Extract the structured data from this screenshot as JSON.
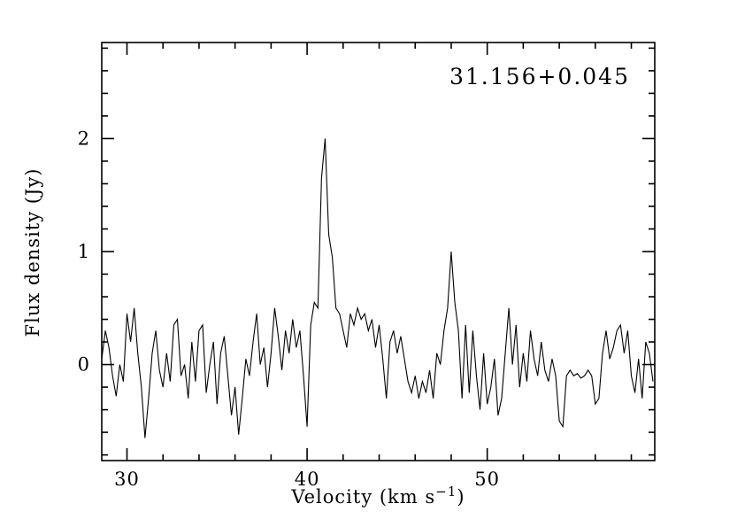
{
  "figure": {
    "background_color": "#ffffff",
    "line_color": "#000000"
  },
  "chart_data": {
    "type": "line",
    "title": "31.156+0.045",
    "xlabel": "Velocity (km s⁻¹)",
    "xlabel_parts": {
      "prefix": "Velocity (km s",
      "sup": "−1",
      "suffix": ")"
    },
    "ylabel": "Flux density (Jy)",
    "xlim": [
      28.6,
      59.3
    ],
    "ylim": [
      -0.85,
      2.85
    ],
    "xticks": [
      30,
      40,
      50
    ],
    "yticks": [
      0,
      1,
      2
    ],
    "xtick_minor_step": 2,
    "ytick_minor_step": 0.2,
    "legend": "none",
    "grid": false,
    "annotations": [
      {
        "text": "31.156+0.045",
        "position": "top-right"
      }
    ],
    "peaks": [
      {
        "velocity": 41.0,
        "flux_density": 2.0
      },
      {
        "velocity": 48.0,
        "flux_density": 1.0
      }
    ],
    "series": [
      {
        "name": "spectrum",
        "x_start": 28.6,
        "x_step": 0.2,
        "values": [
          0.05,
          0.3,
          0.15,
          -0.1,
          -0.28,
          0.0,
          -0.15,
          0.45,
          0.2,
          0.5,
          0.1,
          -0.2,
          -0.65,
          -0.3,
          0.1,
          0.3,
          -0.05,
          -0.2,
          0.1,
          -0.15,
          0.35,
          0.4,
          -0.1,
          0.0,
          -0.3,
          0.2,
          -0.15,
          0.3,
          0.35,
          -0.25,
          0.0,
          0.2,
          -0.35,
          0.1,
          0.25,
          -0.1,
          -0.45,
          -0.2,
          -0.62,
          -0.3,
          0.05,
          -0.1,
          0.2,
          0.45,
          0.0,
          0.15,
          -0.2,
          0.1,
          0.5,
          0.25,
          -0.05,
          0.3,
          0.1,
          0.4,
          0.15,
          0.3,
          -0.1,
          -0.55,
          0.35,
          0.55,
          0.5,
          1.65,
          2.0,
          1.15,
          0.95,
          0.5,
          0.45,
          0.3,
          0.15,
          0.45,
          0.35,
          0.5,
          0.4,
          0.45,
          0.3,
          0.4,
          0.15,
          0.35,
          0.05,
          -0.3,
          0.2,
          0.3,
          0.1,
          0.25,
          0.05,
          -0.15,
          -0.25,
          -0.1,
          -0.3,
          -0.15,
          -0.25,
          -0.05,
          -0.3,
          0.1,
          0.0,
          0.3,
          0.5,
          1.0,
          0.55,
          0.3,
          -0.3,
          0.35,
          -0.25,
          0.3,
          -0.1,
          -0.4,
          0.1,
          -0.35,
          -0.2,
          0.05,
          -0.45,
          -0.3,
          0.1,
          0.5,
          0.0,
          0.35,
          -0.2,
          0.1,
          -0.15,
          0.3,
          0.05,
          -0.1,
          0.2,
          -0.05,
          -0.15,
          0.05,
          -0.1,
          -0.5,
          -0.55,
          -0.1,
          -0.05,
          -0.1,
          -0.08,
          -0.12,
          -0.1,
          -0.05,
          -0.1,
          -0.35,
          -0.3,
          0.1,
          0.3,
          0.05,
          0.15,
          0.3,
          0.35,
          0.1,
          0.3,
          -0.1,
          -0.25,
          0.05,
          -0.3,
          0.2,
          0.1,
          -0.15
        ]
      }
    ]
  }
}
